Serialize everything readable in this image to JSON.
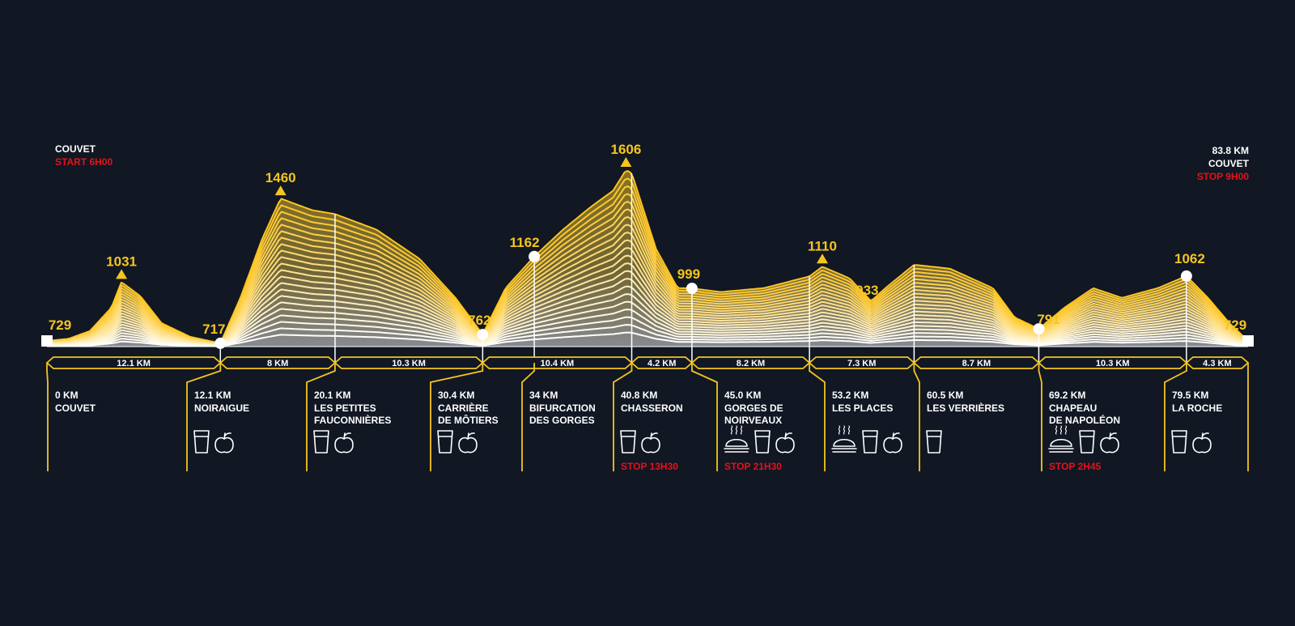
{
  "start": {
    "place": "COUVET",
    "time": "START 6H00"
  },
  "finish": {
    "distance": "83.8 KM",
    "place": "COUVET",
    "time": "STOP 9H00"
  },
  "colors": {
    "background": "#111723",
    "accent": "#f5c51f",
    "lines": "#ffffff",
    "stop": "#e1141c"
  },
  "chart_data": {
    "type": "area",
    "x_unit": "km",
    "y_unit": "m",
    "profile": [
      {
        "km": 0,
        "alt": 729
      },
      {
        "km": 1.5,
        "alt": 740
      },
      {
        "km": 3,
        "alt": 780
      },
      {
        "km": 4.5,
        "alt": 900
      },
      {
        "km": 5.2,
        "alt": 1031
      },
      {
        "km": 6.5,
        "alt": 960
      },
      {
        "km": 8,
        "alt": 820
      },
      {
        "km": 10,
        "alt": 750
      },
      {
        "km": 12.1,
        "alt": 717
      },
      {
        "km": 13.5,
        "alt": 950
      },
      {
        "km": 15,
        "alt": 1250
      },
      {
        "km": 16.3,
        "alt": 1460
      },
      {
        "km": 18.5,
        "alt": 1400
      },
      {
        "km": 20.1,
        "alt": 1380
      },
      {
        "km": 23,
        "alt": 1300
      },
      {
        "km": 26,
        "alt": 1150
      },
      {
        "km": 28.5,
        "alt": 950
      },
      {
        "km": 30.4,
        "alt": 762
      },
      {
        "km": 32,
        "alt": 1000
      },
      {
        "km": 34,
        "alt": 1162
      },
      {
        "km": 36,
        "alt": 1300
      },
      {
        "km": 38,
        "alt": 1420
      },
      {
        "km": 39.5,
        "alt": 1500
      },
      {
        "km": 40.4,
        "alt": 1606
      },
      {
        "km": 40.8,
        "alt": 1590
      },
      {
        "km": 42.5,
        "alt": 1200
      },
      {
        "km": 44,
        "alt": 1000
      },
      {
        "km": 45,
        "alt": 999
      },
      {
        "km": 47,
        "alt": 980
      },
      {
        "km": 50,
        "alt": 1000
      },
      {
        "km": 53.2,
        "alt": 1060
      },
      {
        "km": 54.1,
        "alt": 1110
      },
      {
        "km": 56,
        "alt": 1050
      },
      {
        "km": 57.5,
        "alt": 933
      },
      {
        "km": 58.5,
        "alt": 1000
      },
      {
        "km": 60.5,
        "alt": 1120
      },
      {
        "km": 63,
        "alt": 1100
      },
      {
        "km": 66,
        "alt": 1000
      },
      {
        "km": 67.5,
        "alt": 850
      },
      {
        "km": 69.2,
        "alt": 791
      },
      {
        "km": 71,
        "alt": 900
      },
      {
        "km": 73,
        "alt": 1000
      },
      {
        "km": 75,
        "alt": 950
      },
      {
        "km": 77.5,
        "alt": 1000
      },
      {
        "km": 79.5,
        "alt": 1062
      },
      {
        "km": 81,
        "alt": 950
      },
      {
        "km": 82.5,
        "alt": 820
      },
      {
        "km": 83.8,
        "alt": 729
      }
    ],
    "peaks": [
      {
        "km": 0,
        "alt": 729,
        "label": "729",
        "marker": "flag"
      },
      {
        "km": 5.2,
        "alt": 1031,
        "label": "1031",
        "marker": "triangle"
      },
      {
        "km": 12.1,
        "alt": 717,
        "label": "717",
        "marker": "dot"
      },
      {
        "km": 16.3,
        "alt": 1460,
        "label": "1460",
        "marker": "triangle"
      },
      {
        "km": 30.4,
        "alt": 762,
        "label": "762",
        "marker": "dot"
      },
      {
        "km": 34,
        "alt": 1162,
        "label": "1162",
        "marker": "dot"
      },
      {
        "km": 40.4,
        "alt": 1606,
        "label": "1606",
        "marker": "triangle"
      },
      {
        "km": 45,
        "alt": 999,
        "label": "999",
        "marker": "dot"
      },
      {
        "km": 54.1,
        "alt": 1110,
        "label": "1110",
        "marker": "triangle"
      },
      {
        "km": 57.5,
        "alt": 933,
        "label": "933",
        "marker": "none"
      },
      {
        "km": 69.2,
        "alt": 791,
        "label": "791",
        "marker": "dot"
      },
      {
        "km": 79.5,
        "alt": 1062,
        "label": "1062",
        "marker": "dot"
      },
      {
        "km": 83.8,
        "alt": 729,
        "label": "729",
        "marker": "flag"
      }
    ],
    "waypoints": [
      {
        "km": 0,
        "alt": 729,
        "distance": "0 KM",
        "name": [
          "COUVET"
        ],
        "services": [],
        "stop": ""
      },
      {
        "km": 12.1,
        "alt": 717,
        "distance": "12.1 KM",
        "name": [
          "NOIRAIGUE"
        ],
        "services": [
          "drink",
          "food"
        ],
        "stop": ""
      },
      {
        "km": 20.1,
        "alt": 1380,
        "distance": "20.1 KM",
        "name": [
          "LES PETITES",
          "FAUCONNIÈRES"
        ],
        "services": [
          "drink",
          "food"
        ],
        "stop": ""
      },
      {
        "km": 30.4,
        "alt": 762,
        "distance": "30.4 KM",
        "name": [
          "CARRIÈRE",
          "DE MÔTIERS"
        ],
        "services": [
          "drink",
          "food"
        ],
        "stop": ""
      },
      {
        "km": 34,
        "alt": 1162,
        "distance": "34 KM",
        "name": [
          "BIFURCATION",
          "DES GORGES"
        ],
        "services": [],
        "stop": ""
      },
      {
        "km": 40.8,
        "alt": 1590,
        "distance": "40.8 KM",
        "name": [
          "CHASSERON"
        ],
        "services": [
          "drink",
          "food"
        ],
        "stop": "STOP 13H30"
      },
      {
        "km": 45,
        "alt": 999,
        "distance": "45.0 KM",
        "name": [
          "GORGES DE",
          "NOIRVEAUX"
        ],
        "services": [
          "meal",
          "drink",
          "food"
        ],
        "stop": "STOP 21H30"
      },
      {
        "km": 53.2,
        "alt": 1060,
        "distance": "53.2 KM",
        "name": [
          "LES PLACES"
        ],
        "services": [
          "meal",
          "drink",
          "food"
        ],
        "stop": ""
      },
      {
        "km": 60.5,
        "alt": 1120,
        "distance": "60.5 KM",
        "name": [
          "LES VERRIÈRES"
        ],
        "services": [
          "drink"
        ],
        "stop": ""
      },
      {
        "km": 69.2,
        "alt": 791,
        "distance": "69.2 KM",
        "name": [
          "CHAPEAU",
          "DE NAPOLÉON"
        ],
        "services": [
          "meal",
          "drink",
          "food"
        ],
        "stop": "STOP 2H45"
      },
      {
        "km": 79.5,
        "alt": 1062,
        "distance": "79.5 KM",
        "name": [
          "LA ROCHE"
        ],
        "services": [
          "drink",
          "food"
        ],
        "stop": ""
      }
    ],
    "segments": [
      {
        "from": 0,
        "to": 12.1,
        "label": "12.1 KM"
      },
      {
        "from": 12.1,
        "to": 20.1,
        "label": "8 KM"
      },
      {
        "from": 20.1,
        "to": 30.4,
        "label": "10.3 KM"
      },
      {
        "from": 30.4,
        "to": 40.8,
        "label": "10.4 KM"
      },
      {
        "from": 40.8,
        "to": 45,
        "label": "4.2 KM"
      },
      {
        "from": 45,
        "to": 53.2,
        "label": "8.2 KM"
      },
      {
        "from": 53.2,
        "to": 60.5,
        "label": "7.3 KM"
      },
      {
        "from": 60.5,
        "to": 69.2,
        "label": "8.7 KM"
      },
      {
        "from": 69.2,
        "to": 79.5,
        "label": "10.3 KM"
      },
      {
        "from": 79.5,
        "to": 83.8,
        "label": "4.3 KM"
      }
    ]
  }
}
